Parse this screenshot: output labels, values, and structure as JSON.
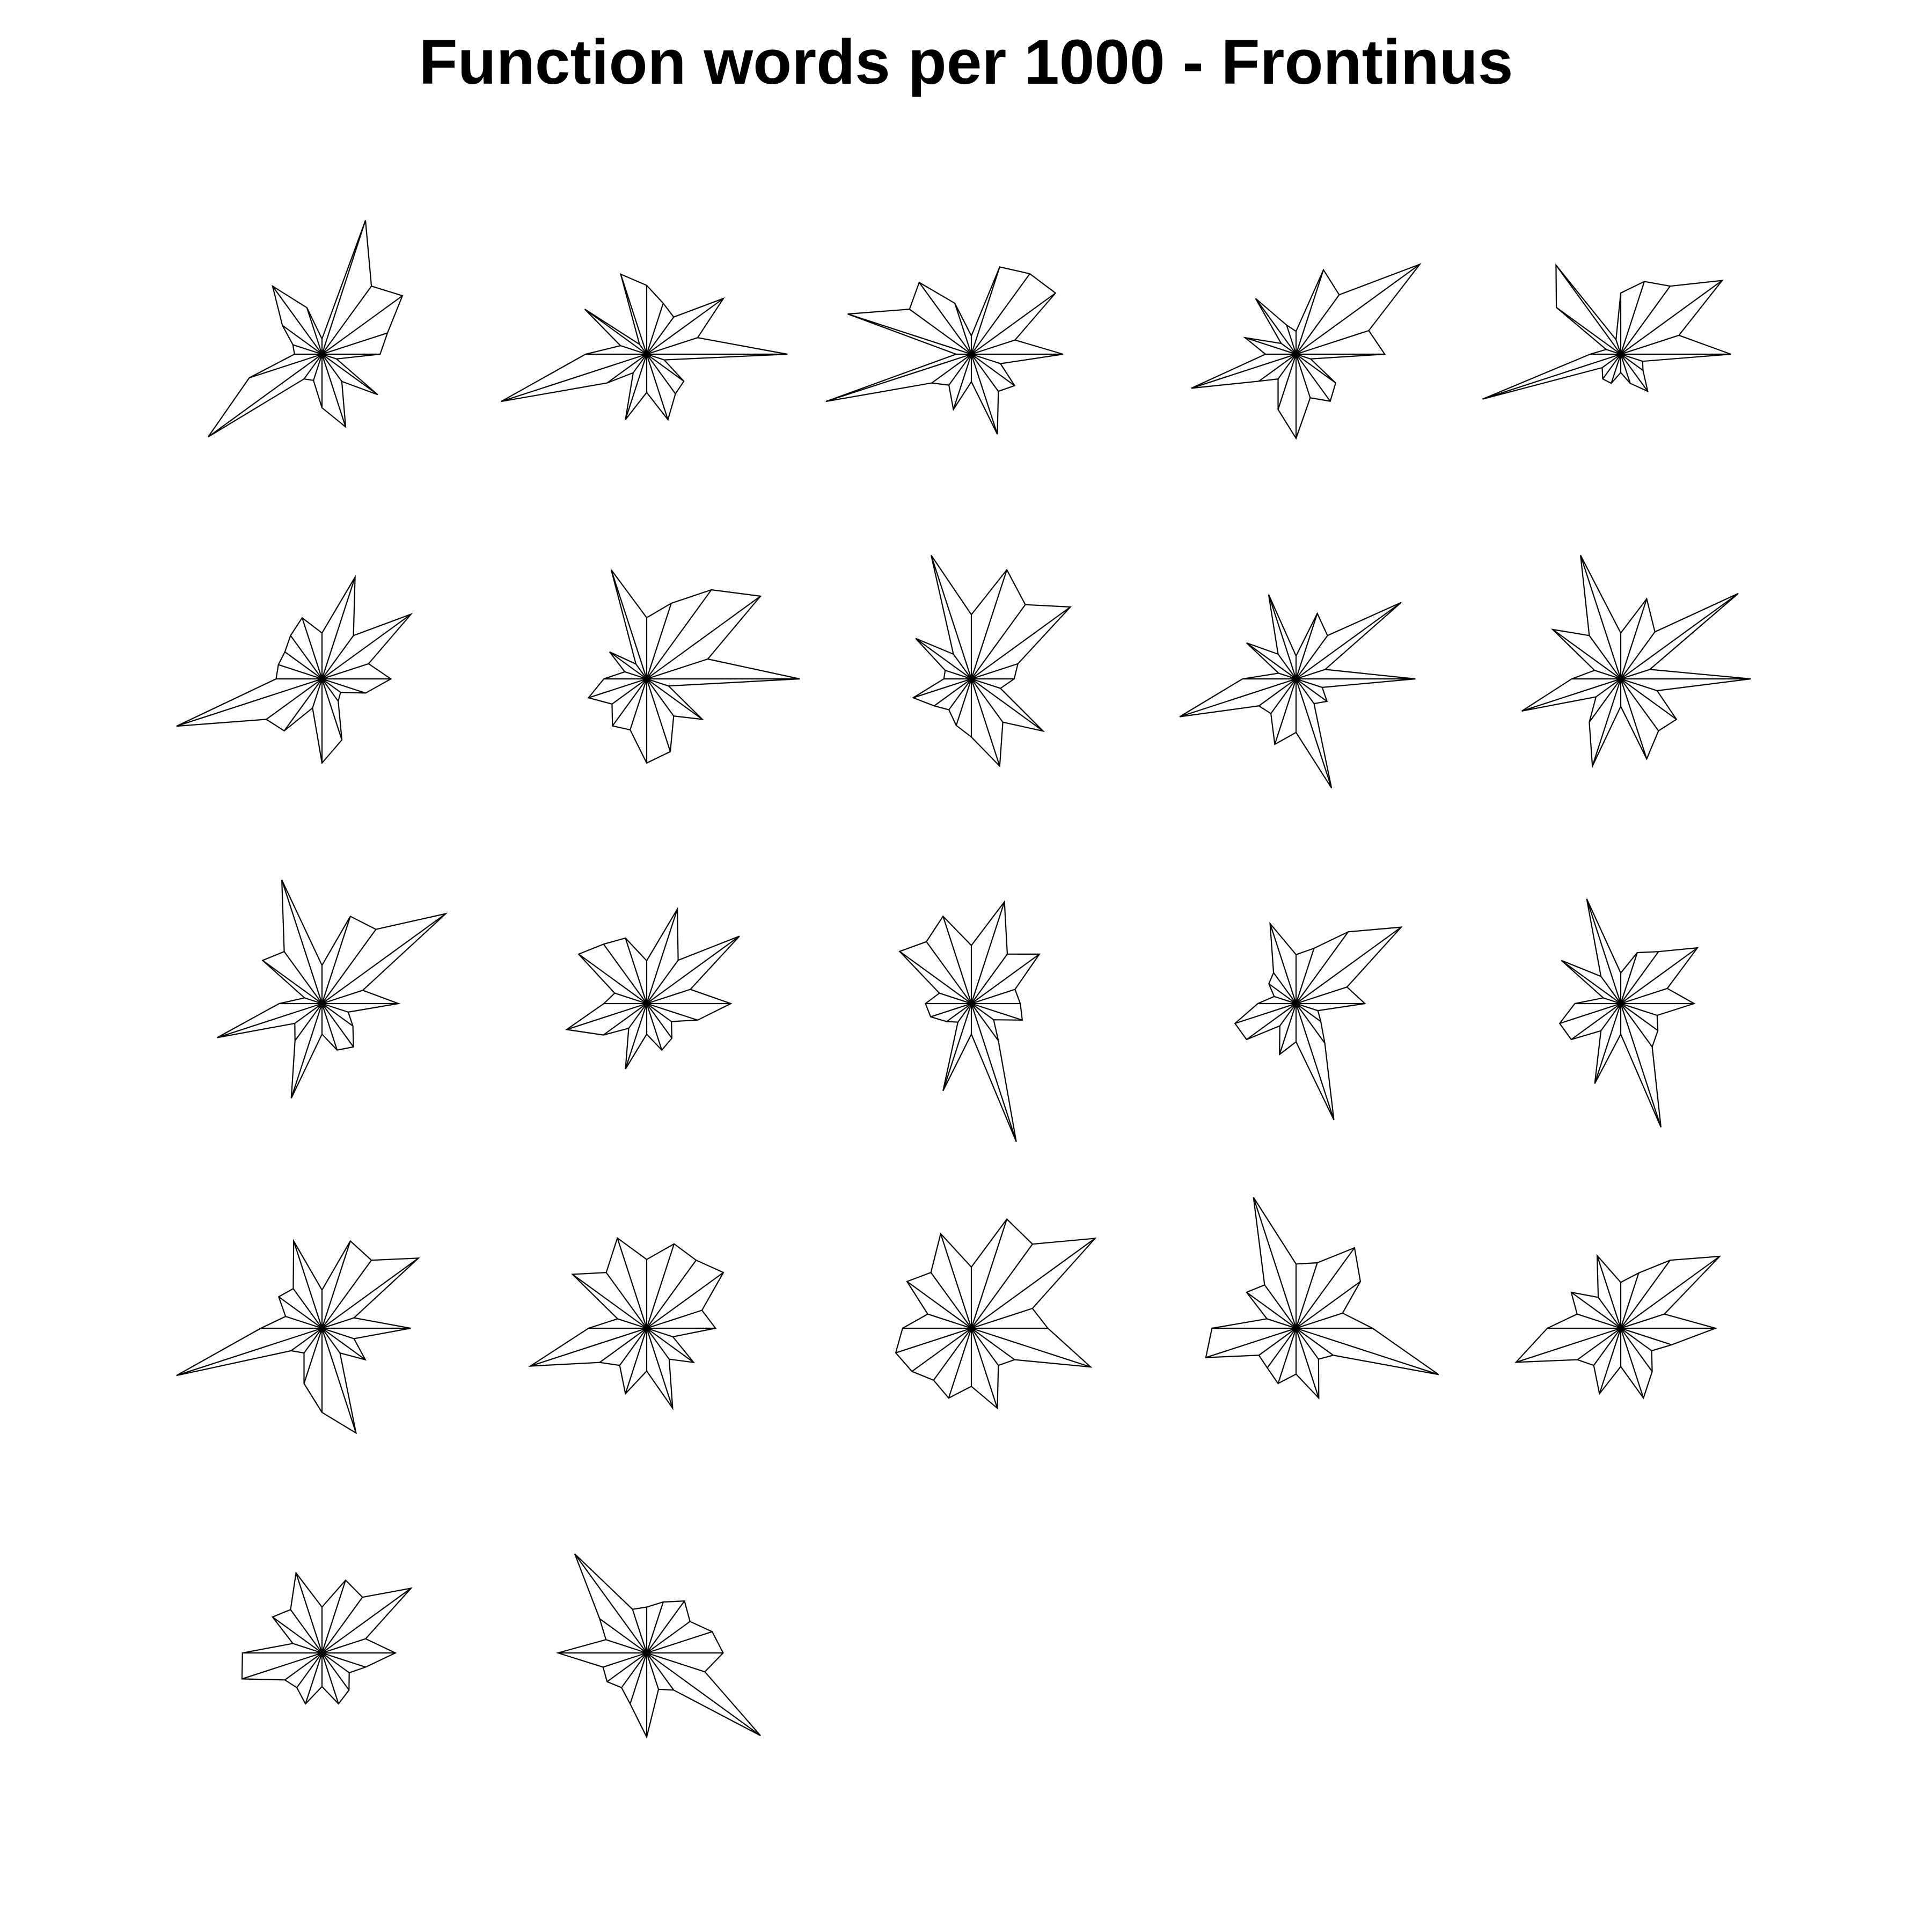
{
  "chart_data": {
    "type": "star",
    "title": "Function words per 1000 - Frontinus",
    "variables": 20,
    "grid": false,
    "legend": "none",
    "label_text_shown": false,
    "stars": [
      [
        0.38,
        0.45,
        0.65,
        0.55,
        0.92,
        0.1,
        0.32,
        0.55,
        0.32,
        0.2,
        0.18,
        0.5,
        0.92,
        0.2,
        0.18,
        0.35,
        0.5,
        0.22,
        0.45,
        0.1
      ],
      [
        0.92,
        0.35,
        0.62,
        0.3,
        0.35,
        0.45,
        0.55,
        0.08,
        0.5,
        0.18,
        0.4,
        1.0,
        0.32,
        0.15,
        0.45,
        0.25,
        0.45,
        0.32,
        0.3,
        0.12
      ],
      [
        0.6,
        0.3,
        0.68,
        0.65,
        0.6,
        0.12,
        0.35,
        0.58,
        0.5,
        0.85,
        0.1,
        1.0,
        0.32,
        0.25,
        0.38,
        0.18,
        0.55,
        0.3,
        0.35,
        0.2
      ],
      [
        0.58,
        0.5,
        1.0,
        0.48,
        0.58,
        0.15,
        0.2,
        0.45,
        0.12,
        0.35,
        0.2,
        0.72,
        0.3,
        0.2,
        0.38,
        0.55,
        0.3,
        0.38,
        0.32,
        0.1
      ],
      [
        0.72,
        0.4,
        0.82,
        0.55,
        0.5,
        0.4,
        0.1,
        0.72,
        0.52,
        0.1,
        0.2,
        0.95,
        0.15,
        0.2,
        0.2,
        0.12,
        0.2,
        0.3,
        0.18,
        0.15
      ],
      [
        0.45,
        0.32,
        0.72,
        0.35,
        0.7,
        0.3,
        0.42,
        0.35,
        0.3,
        0.3,
        0.3,
        1.0,
        0.45,
        0.42,
        0.2,
        0.55,
        0.42,
        0.18,
        0.15,
        0.3
      ],
      [
        1.0,
        0.42,
        0.92,
        0.72,
        0.52,
        0.4,
        0.75,
        0.12,
        0.3,
        0.15,
        0.28,
        0.4,
        0.28,
        0.38,
        0.35,
        0.55,
        0.5,
        0.3,
        0.45,
        0.15
      ],
      [
        0.28,
        0.32,
        0.8,
        0.6,
        0.75,
        0.42,
        0.85,
        0.2,
        0.45,
        0.18,
        0.18,
        0.4,
        0.3,
        0.25,
        0.32,
        0.38,
        0.6,
        0.35,
        0.58,
        0.2
      ],
      [
        0.78,
        0.2,
        0.85,
        0.35,
        0.45,
        0.15,
        0.58,
        0.2,
        0.4,
        0.12,
        0.35,
        0.8,
        0.3,
        0.28,
        0.45,
        0.35,
        0.75,
        0.2,
        0.25,
        0.18
      ],
      [
        0.85,
        0.2,
        0.95,
        0.38,
        0.55,
        0.3,
        0.85,
        0.35,
        0.55,
        0.18,
        0.32,
        0.68,
        0.2,
        0.35,
        0.6,
        0.18,
        0.55,
        0.42,
        0.45,
        0.25
      ],
      [
        0.5,
        0.28,
        1.0,
        0.6,
        0.6,
        0.25,
        0.85,
        0.42,
        0.48,
        0.12,
        0.28,
        0.72,
        0.22,
        0.3,
        0.65,
        0.2,
        0.32,
        0.35,
        0.25,
        0.18
      ],
      [
        0.55,
        0.3,
        0.75,
        0.35,
        0.65,
        0.28,
        0.45,
        0.48,
        0.55,
        0.22,
        0.28,
        0.55,
        0.35,
        0.2,
        0.45,
        0.2,
        0.32,
        0.28,
        0.2,
        0.35
      ],
      [
        0.32,
        0.3,
        0.55,
        0.4,
        0.7,
        0.38,
        0.6,
        0.5,
        0.58,
        0.22,
        0.3,
        0.28,
        0.2,
        0.15,
        0.6,
        0.2,
        0.95,
        0.3,
        0.18,
        0.35
      ],
      [
        0.45,
        0.35,
        0.85,
        0.58,
        0.38,
        0.32,
        0.55,
        0.25,
        0.22,
        0.15,
        0.25,
        0.42,
        0.4,
        0.18,
        0.35,
        0.25,
        0.8,
        0.32,
        0.2,
        0.15
      ],
      [
        0.48,
        0.32,
        0.62,
        0.42,
        0.35,
        0.2,
        0.72,
        0.22,
        0.48,
        0.12,
        0.3,
        0.42,
        0.4,
        0.22,
        0.55,
        0.2,
        0.85,
        0.35,
        0.3,
        0.25
      ],
      [
        0.58,
        0.22,
        0.78,
        0.55,
        0.6,
        0.25,
        0.6,
        0.32,
        0.35,
        0.25,
        0.4,
        1.0,
        0.25,
        0.2,
        0.38,
        0.55,
        0.72,
        0.2,
        0.35,
        0.22
      ],
      [
        0.45,
        0.38,
        0.62,
        0.55,
        0.58,
        0.45,
        0.62,
        0.45,
        0.6,
        0.2,
        0.38,
        0.8,
        0.38,
        0.3,
        0.45,
        0.28,
        0.55,
        0.25,
        0.38,
        0.18
      ],
      [
        0.5,
        0.42,
        1.0,
        0.68,
        0.75,
        0.4,
        0.65,
        0.45,
        0.52,
        0.3,
        0.45,
        0.52,
        0.48,
        0.42,
        0.48,
        0.38,
        0.55,
        0.3,
        0.35,
        0.82
      ],
      [
        0.5,
        0.32,
        0.52,
        0.65,
        0.45,
        0.42,
        0.9,
        0.35,
        0.4,
        0.2,
        0.55,
        0.62,
        0.3,
        0.32,
        0.38,
        0.3,
        0.48,
        0.25,
        0.3,
        0.98
      ],
      [
        0.62,
        0.3,
        0.8,
        0.55,
        0.38,
        0.3,
        0.5,
        0.25,
        0.4,
        0.3,
        0.48,
        0.72,
        0.35,
        0.3,
        0.45,
        0.25,
        0.48,
        0.35,
        0.25,
        0.35
      ],
      [
        0.48,
        0.3,
        0.72,
        0.45,
        0.5,
        0.3,
        0.55,
        0.35,
        0.4,
        0.2,
        0.52,
        0.55,
        0.3,
        0.28,
        0.35,
        0.22,
        0.35,
        0.3,
        0.22,
        0.3
      ],
      [
        0.5,
        0.45,
        0.35,
        0.42,
        0.35,
        0.3,
        0.3,
        0.8,
        0.38,
        0.28,
        0.58,
        0.3,
        0.32,
        0.28,
        0.35,
        0.55,
        0.25,
        0.3,
        0.92,
        0.4
      ]
    ]
  }
}
